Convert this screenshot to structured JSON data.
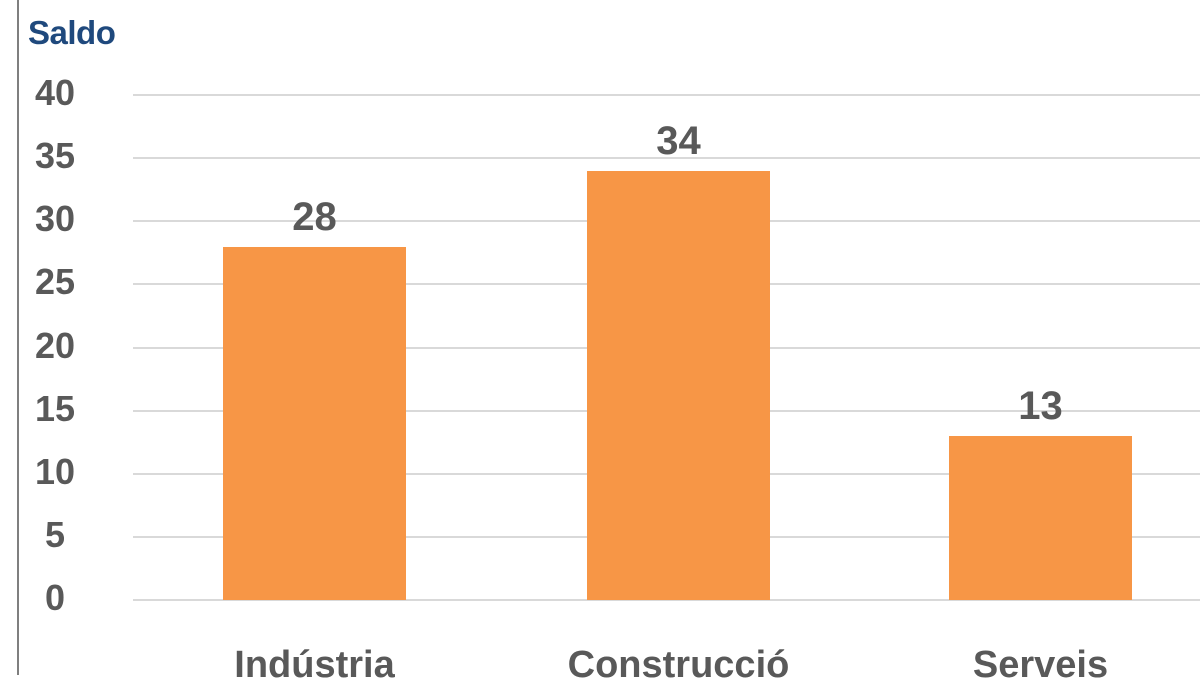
{
  "chart_data": {
    "type": "bar",
    "title": "Saldo",
    "xlabel": "",
    "ylabel": "Saldo",
    "categories": [
      "Indústria",
      "Construcció",
      "Serveis"
    ],
    "values": [
      28,
      34,
      13
    ],
    "data_labels": [
      "28",
      "34",
      "13"
    ],
    "ylim": [
      0,
      40
    ],
    "yticks": [
      "0",
      "5",
      "10",
      "15",
      "20",
      "25",
      "30",
      "35",
      "40"
    ],
    "grid": true,
    "legend": "none",
    "bar_color": "#f79646",
    "title_color": "#1f497d",
    "text_color": "#595959"
  }
}
